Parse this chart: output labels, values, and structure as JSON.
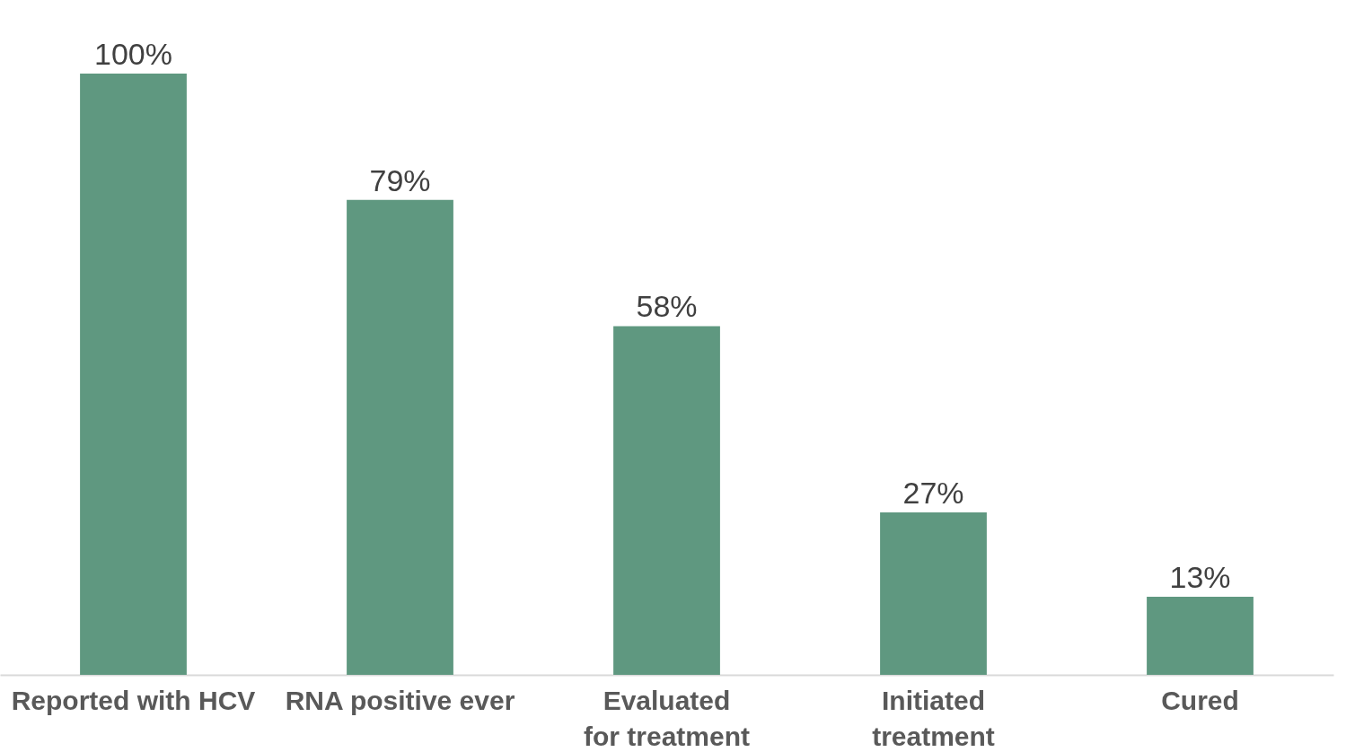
{
  "chart_data": {
    "type": "bar",
    "categories": [
      "Reported with HCV",
      "RNA positive ever",
      "Evaluated\nfor treatment",
      "Initiated\ntreatment",
      "Cured"
    ],
    "values": [
      100,
      79,
      58,
      27,
      13
    ],
    "value_labels": [
      "100%",
      "79%",
      "58%",
      "27%",
      "13%"
    ],
    "color": "#5f9880"
  }
}
